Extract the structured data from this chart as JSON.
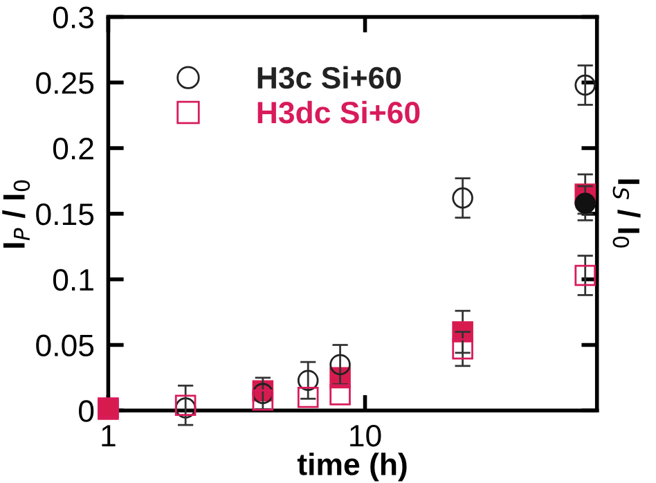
{
  "chart_data": {
    "type": "scatter",
    "xlabel": "time (h)",
    "ylabel": "I$_{P}$ / I$_{0}$",
    "y2label": "I$_{S}$ / I$_{0}$",
    "log": "x",
    "xlim": [
      1,
      80
    ],
    "xticks": [
      1,
      10
    ],
    "ylim": [
      0,
      0.3
    ],
    "yticks": [
      0,
      0.05,
      0.1,
      0.15,
      0.2,
      0.25,
      0.3
    ],
    "grid": false,
    "legend": "top left",
    "series": [
      {
        "name": "H3c Si+60",
        "color": "#222222",
        "marker": "circle",
        "x": [
          2,
          4,
          6,
          8,
          24,
          72
        ],
        "values": [
          0.002,
          0.013,
          0.023,
          0.035,
          0.162,
          0.248
        ],
        "errors": [
          null,
          0.012,
          0.014,
          0.015,
          0.015,
          0.015
        ]
      },
      {
        "name": "H3dc Si+60",
        "color": "#d81b5a",
        "marker": "square",
        "x": [
          1,
          2,
          4,
          6,
          8,
          24,
          72
        ],
        "values": [
          0.002,
          0.004,
          0.008,
          0.01,
          0.012,
          0.047,
          0.103
        ],
        "errors": [
          null,
          0.015,
          null,
          null,
          null,
          0.013,
          0.015
        ]
      },
      {
        "color": "#d81b4f",
        "marker": "square",
        "x": [
          1,
          4,
          8,
          24,
          72
        ],
        "values": [
          0.001,
          0.015,
          0.025,
          0.06,
          0.165
        ],
        "errors": [
          null,
          null,
          null,
          0.016,
          0.015
        ]
      },
      {
        "color": "#111111",
        "marker": "circle",
        "x": [
          72
        ],
        "values": [
          0.158
        ],
        "errors": [
          0.013
        ]
      }
    ]
  }
}
